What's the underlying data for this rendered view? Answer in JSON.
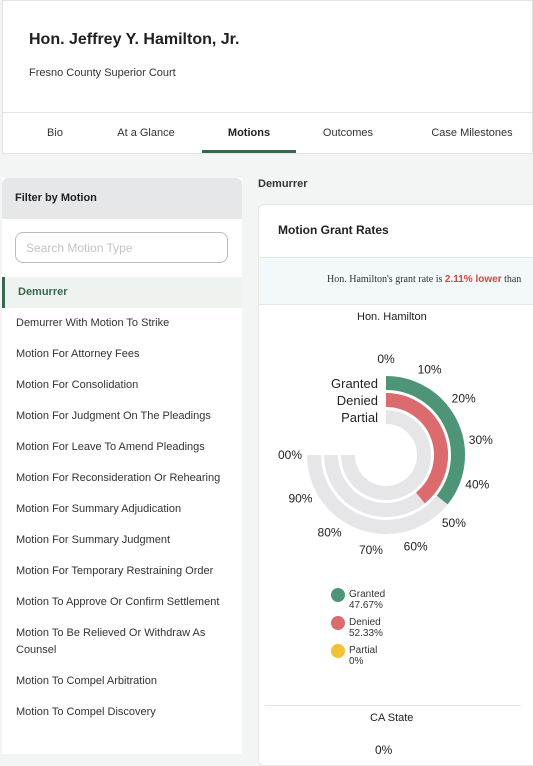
{
  "header": {
    "judge_name": "Hon. Jeffrey Y. Hamilton, Jr.",
    "court": "Fresno County Superior Court"
  },
  "tabs": [
    {
      "label": "Bio"
    },
    {
      "label": "At a Glance"
    },
    {
      "label": "Motions",
      "active": true
    },
    {
      "label": "Outcomes"
    },
    {
      "label": "Case Milestones"
    }
  ],
  "sidebar": {
    "title": "Filter by Motion",
    "search_placeholder": "Search Motion Type",
    "items": [
      "Demurrer",
      "Demurrer With Motion To Strike",
      "Motion For Attorney Fees",
      "Motion For Consolidation",
      "Motion For Judgment On The Pleadings",
      "Motion For Leave To Amend Pleadings",
      "Motion For Reconsideration Or Rehearing",
      "Motion For Summary Adjudication",
      "Motion For Summary Judgment",
      "Motion For Temporary Restraining Order",
      "Motion To Approve Or Confirm Settlement",
      "Motion To Be Relieved Or Withdraw As Counsel",
      "Motion To Compel Arbitration",
      "Motion To Compel Discovery"
    ],
    "active_index": 0
  },
  "main": {
    "breadcrumb": "Demurrer",
    "card_title": "Motion Grant Rates",
    "notice_prefix": "Hon. Hamilton's grant rate is ",
    "notice_highlight": "2.11% lower",
    "notice_suffix": " than"
  },
  "chart_data": [
    {
      "type": "radial_bar",
      "title": "Hon. Hamilton",
      "ticks": [
        "0%",
        "10%",
        "20%",
        "30%",
        "40%",
        "50%",
        "60%",
        "70%",
        "80%",
        "90%",
        "00%"
      ],
      "series": [
        {
          "name": "Granted",
          "value": 47.67,
          "color": "#4e9578"
        },
        {
          "name": "Denied",
          "value": 52.33,
          "color": "#dc6b6e"
        },
        {
          "name": "Partial",
          "value": 0,
          "color": "#f2c233"
        }
      ],
      "legend": [
        {
          "label": "Granted 47.67%",
          "color": "#4e9578"
        },
        {
          "label": "Denied 52.33%",
          "color": "#dc6b6e"
        },
        {
          "label": "Partial 0%",
          "color": "#f2c233"
        }
      ],
      "track_color": "#e6e6e9"
    },
    {
      "type": "radial_bar",
      "title": "CA State",
      "ticks": [
        "0%"
      ]
    }
  ]
}
